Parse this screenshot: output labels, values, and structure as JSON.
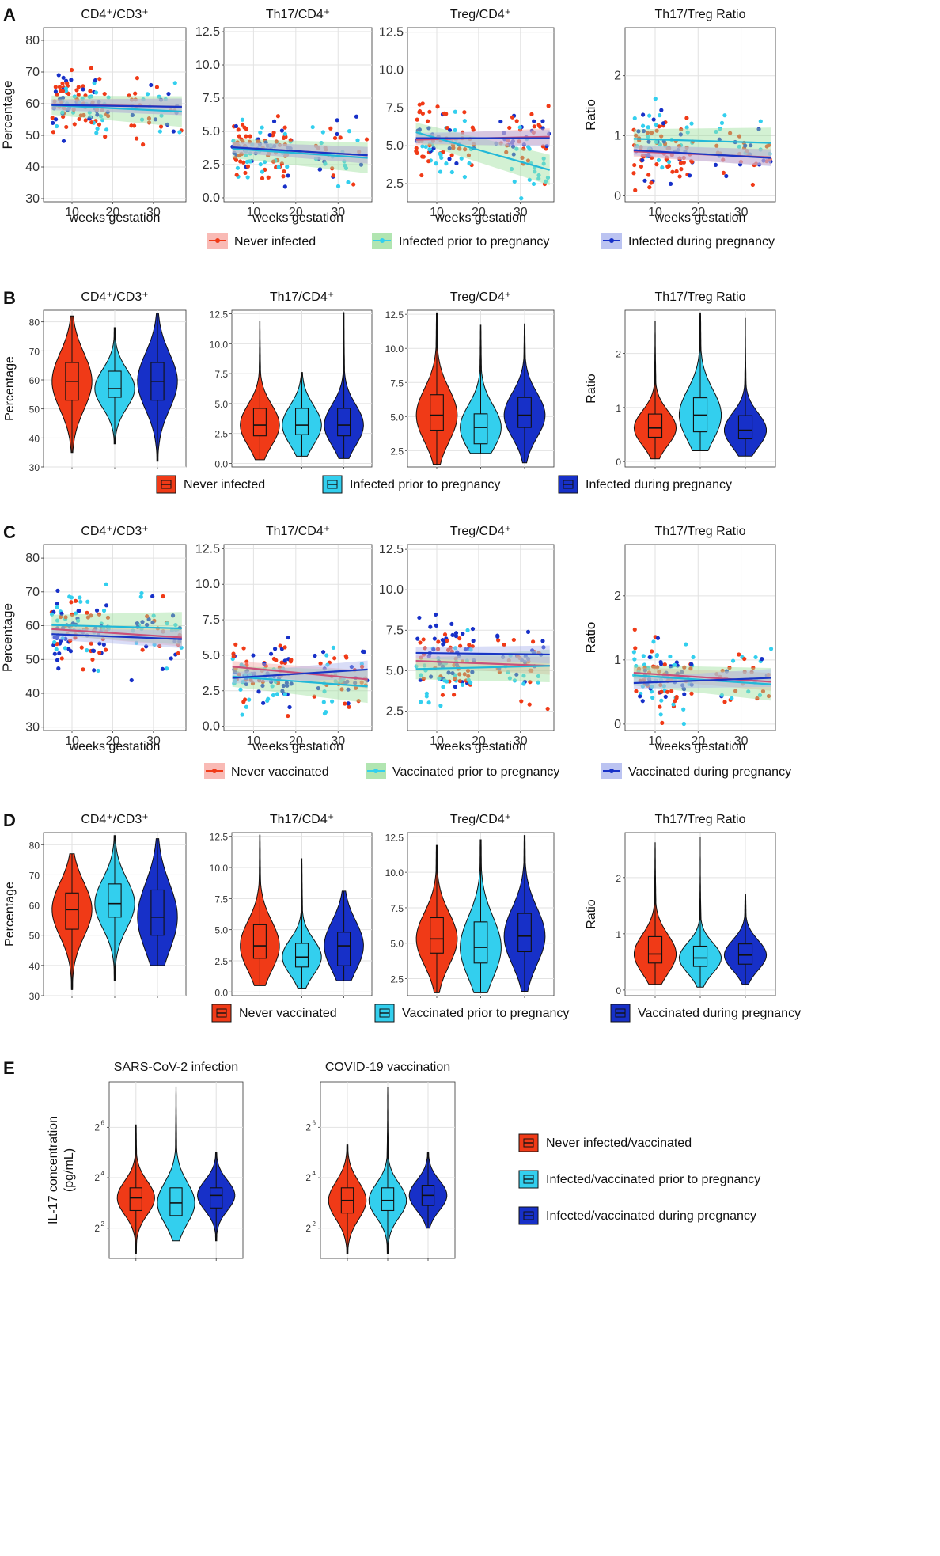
{
  "colors": {
    "never": "#f03a17",
    "prior": "#33cfee",
    "during": "#1730c8",
    "never_band": "#f7a9a3",
    "prior_band": "#9ddf9d",
    "during_band": "#aab4ee",
    "never_line": "#c9507a",
    "prior_line": "#22b8d8",
    "during_line": "#1a36c4"
  },
  "panel_letters": {
    "A": "A",
    "B": "B",
    "C": "C",
    "D": "D",
    "E": "E"
  },
  "axis_titles": {
    "percentage": "Percentage",
    "ratio": "Ratio",
    "weeks": "weeks gestation",
    "il17_line1": "IL-17 concentration",
    "il17_line2": "(pg/mL)"
  },
  "legends": {
    "infection": [
      "Never infected",
      "Infected prior to pregnancy",
      "Infected during pregnancy"
    ],
    "vaccination": [
      "Never vaccinated",
      "Vaccinated prior to pregnancy",
      "Vaccinated during pregnancy"
    ],
    "combined": [
      "Never infected/vaccinated",
      "Infected/vaccinated prior to pregnancy",
      "Infected/vaccinated during pregnancy"
    ]
  },
  "chart_data": [
    {
      "panel": "A",
      "type": "scatter",
      "grouping": "infection",
      "xlabel": "weeks gestation",
      "xticks": [
        10,
        20,
        30
      ],
      "xlim": [
        3,
        38
      ],
      "subplots": [
        {
          "title": "CD4⁺/CD3⁺",
          "ylabel": "Percentage",
          "ylim": [
            29,
            84
          ],
          "yticks": [
            30,
            40,
            50,
            60,
            70,
            80
          ],
          "trend": {
            "never": [
              59.8,
              59.0
            ],
            "prior": [
              59.5,
              57.5
            ],
            "during": [
              59.6,
              59.0
            ]
          }
        },
        {
          "title": "Th17/CD4⁺",
          "ylabel": "",
          "ylim": [
            -0.3,
            12.8
          ],
          "yticks": [
            "0.0",
            "2.5",
            "5.0",
            "7.5",
            "10.0",
            "12.5"
          ],
          "trend": {
            "never": [
              3.8,
              3.2
            ],
            "prior": [
              3.7,
              3.0
            ],
            "during": [
              3.8,
              3.2
            ]
          }
        },
        {
          "title": "Treg/CD4⁺",
          "ylabel": "",
          "ylim": [
            1.3,
            12.8
          ],
          "yticks": [
            "2.5",
            "5.0",
            "7.5",
            "10.0",
            "12.5"
          ],
          "trend": {
            "never": [
              5.4,
              5.6
            ],
            "prior": [
              5.9,
              3.4
            ],
            "during": [
              5.5,
              5.5
            ]
          }
        },
        {
          "title": "Th17/Treg Ratio",
          "ylabel": "Ratio",
          "ylim": [
            -0.1,
            2.8
          ],
          "yticks": [
            0,
            1,
            2
          ],
          "trend": {
            "never": [
              0.74,
              0.64
            ],
            "prior": [
              0.95,
              0.88
            ],
            "during": [
              0.76,
              0.63
            ]
          }
        }
      ]
    },
    {
      "panel": "B",
      "type": "violin",
      "grouping": "infection",
      "subplots": [
        {
          "title": "CD4⁺/CD3⁺",
          "ylabel": "Percentage",
          "ylim": [
            30,
            84
          ],
          "yticks": [
            30,
            40,
            50,
            60,
            70,
            80
          ],
          "groups": [
            {
              "min": 35,
              "q1": 53,
              "median": 59.5,
              "q3": 66,
              "max": 82
            },
            {
              "min": 38,
              "q1": 54,
              "median": 57,
              "q3": 63,
              "max": 78
            },
            {
              "min": 32,
              "q1": 53,
              "median": 59.5,
              "q3": 66,
              "max": 83
            }
          ]
        },
        {
          "title": "Th17/CD4⁺",
          "ylabel": "",
          "ylim": [
            -0.3,
            12.8
          ],
          "yticks": [
            "0.0",
            "2.5",
            "5.0",
            "7.5",
            "10.0",
            "12.5"
          ],
          "groups": [
            {
              "min": 0.3,
              "q1": 2.3,
              "median": 3.2,
              "q3": 4.6,
              "max": 11.9
            },
            {
              "min": 0.6,
              "q1": 2.4,
              "median": 3.2,
              "q3": 4.6,
              "max": 7.6
            },
            {
              "min": 0.4,
              "q1": 2.3,
              "median": 3.2,
              "q3": 4.6,
              "max": 12.6
            }
          ]
        },
        {
          "title": "Treg/CD4⁺",
          "ylabel": "",
          "ylim": [
            1.3,
            12.8
          ],
          "yticks": [
            "2.5",
            "5.0",
            "7.5",
            "10.0",
            "12.5"
          ],
          "groups": [
            {
              "min": 1.5,
              "q1": 4.0,
              "median": 5.1,
              "q3": 6.6,
              "max": 12.6
            },
            {
              "min": 2.3,
              "q1": 3.0,
              "median": 4.2,
              "q3": 5.2,
              "max": 11.7
            },
            {
              "min": 1.6,
              "q1": 4.2,
              "median": 5.1,
              "q3": 6.4,
              "max": 11.8
            }
          ]
        },
        {
          "title": "Th17/Treg Ratio",
          "ylabel": "Ratio",
          "ylim": [
            -0.1,
            2.8
          ],
          "yticks": [
            0,
            1,
            2
          ],
          "groups": [
            {
              "min": 0.05,
              "q1": 0.45,
              "median": 0.62,
              "q3": 0.88,
              "max": 2.6
            },
            {
              "min": 0.2,
              "q1": 0.55,
              "median": 0.86,
              "q3": 1.18,
              "max": 2.75
            },
            {
              "min": 0.1,
              "q1": 0.42,
              "median": 0.58,
              "q3": 0.85,
              "max": 2.65
            }
          ]
        }
      ]
    },
    {
      "panel": "C",
      "type": "scatter",
      "grouping": "vaccination",
      "xlabel": "weeks gestation",
      "xticks": [
        10,
        20,
        30
      ],
      "xlim": [
        3,
        38
      ],
      "subplots": [
        {
          "title": "CD4⁺/CD3⁺",
          "ylabel": "Percentage",
          "ylim": [
            29,
            84
          ],
          "yticks": [
            30,
            40,
            50,
            60,
            70,
            80
          ],
          "trend": {
            "never": [
              59.0,
              56.5
            ],
            "prior": [
              60.2,
              59.2
            ],
            "during": [
              57.5,
              56.0
            ]
          }
        },
        {
          "title": "Th17/CD4⁺",
          "ylabel": "",
          "ylim": [
            -0.3,
            12.8
          ],
          "yticks": [
            "0.0",
            "2.5",
            "5.0",
            "7.5",
            "10.0",
            "12.5"
          ],
          "trend": {
            "never": [
              4.2,
              3.3
            ],
            "prior": [
              3.5,
              2.8
            ],
            "during": [
              3.4,
              4.0
            ]
          }
        },
        {
          "title": "Treg/CD4⁺",
          "ylabel": "",
          "ylim": [
            1.3,
            12.8
          ],
          "yticks": [
            "2.5",
            "5.0",
            "7.5",
            "10.0",
            "12.5"
          ],
          "trend": {
            "never": [
              5.6,
              5.3
            ],
            "prior": [
              5.1,
              5.3
            ],
            "during": [
              6.1,
              6.0
            ]
          }
        },
        {
          "title": "Th17/Treg Ratio",
          "ylabel": "Ratio",
          "ylim": [
            -0.1,
            2.8
          ],
          "yticks": [
            0,
            1,
            2
          ],
          "trend": {
            "never": [
              0.8,
              0.66
            ],
            "prior": [
              0.76,
              0.62
            ],
            "during": [
              0.64,
              0.72
            ]
          }
        }
      ]
    },
    {
      "panel": "D",
      "type": "violin",
      "grouping": "vaccination",
      "subplots": [
        {
          "title": "CD4⁺/CD3⁺",
          "ylabel": "Percentage",
          "ylim": [
            30,
            84
          ],
          "yticks": [
            30,
            40,
            50,
            60,
            70,
            80
          ],
          "groups": [
            {
              "min": 32,
              "q1": 52,
              "median": 58.5,
              "q3": 64,
              "max": 77
            },
            {
              "min": 35,
              "q1": 56,
              "median": 60.5,
              "q3": 67,
              "max": 83
            },
            {
              "min": 40,
              "q1": 50,
              "median": 56,
              "q3": 65,
              "max": 82
            }
          ]
        },
        {
          "title": "Th17/CD4⁺",
          "ylabel": "",
          "ylim": [
            -0.3,
            12.8
          ],
          "yticks": [
            "0.0",
            "2.5",
            "5.0",
            "7.5",
            "10.0",
            "12.5"
          ],
          "groups": [
            {
              "min": 0.5,
              "q1": 2.7,
              "median": 3.7,
              "q3": 5.4,
              "max": 12.6
            },
            {
              "min": 0.3,
              "q1": 2.0,
              "median": 2.8,
              "q3": 3.9,
              "max": 10.7
            },
            {
              "min": 0.9,
              "q1": 2.1,
              "median": 3.7,
              "q3": 4.8,
              "max": 8.1
            }
          ]
        },
        {
          "title": "Treg/CD4⁺",
          "ylabel": "",
          "ylim": [
            1.3,
            12.8
          ],
          "yticks": [
            "2.5",
            "5.0",
            "7.5",
            "10.0",
            "12.5"
          ],
          "groups": [
            {
              "min": 1.5,
              "q1": 4.3,
              "median": 5.3,
              "q3": 6.8,
              "max": 11.9
            },
            {
              "min": 1.5,
              "q1": 3.6,
              "median": 4.7,
              "q3": 6.5,
              "max": 12.3
            },
            {
              "min": 1.6,
              "q1": 4.4,
              "median": 5.5,
              "q3": 7.1,
              "max": 12.6
            }
          ]
        },
        {
          "title": "Th17/Treg Ratio",
          "ylabel": "Ratio",
          "ylim": [
            -0.1,
            2.8
          ],
          "yticks": [
            0,
            1,
            2
          ],
          "groups": [
            {
              "min": 0.1,
              "q1": 0.48,
              "median": 0.64,
              "q3": 0.95,
              "max": 2.62
            },
            {
              "min": 0.05,
              "q1": 0.42,
              "median": 0.57,
              "q3": 0.78,
              "max": 2.72
            },
            {
              "min": 0.1,
              "q1": 0.46,
              "median": 0.62,
              "q3": 0.82,
              "max": 1.7
            }
          ]
        }
      ]
    },
    {
      "panel": "E",
      "type": "violin",
      "grouping": "combined",
      "ylabel": "IL-17 concentration (pg/mL)",
      "subplots": [
        {
          "title": "SARS-CoV-2 infection",
          "ylim": [
            0.8,
            7.8
          ],
          "yticks": [
            2,
            4,
            6
          ],
          "ytick_base": "2",
          "groups": [
            {
              "min": 1.0,
              "q1": 2.7,
              "median": 3.2,
              "q3": 3.6,
              "max": 6.1
            },
            {
              "min": 1.5,
              "q1": 2.5,
              "median": 3.0,
              "q3": 3.6,
              "max": 7.6
            },
            {
              "min": 1.5,
              "q1": 2.8,
              "median": 3.3,
              "q3": 3.6,
              "max": 5.0
            }
          ]
        },
        {
          "title": "COVID-19 vaccination",
          "ylim": [
            0.8,
            7.8
          ],
          "yticks": [
            2,
            4,
            6
          ],
          "ytick_base": "2",
          "groups": [
            {
              "min": 1.0,
              "q1": 2.6,
              "median": 3.1,
              "q3": 3.6,
              "max": 5.3
            },
            {
              "min": 1.0,
              "q1": 2.7,
              "median": 3.1,
              "q3": 3.6,
              "max": 7.6
            },
            {
              "min": 2.0,
              "q1": 2.9,
              "median": 3.3,
              "q3": 3.7,
              "max": 5.0
            }
          ]
        }
      ]
    }
  ]
}
